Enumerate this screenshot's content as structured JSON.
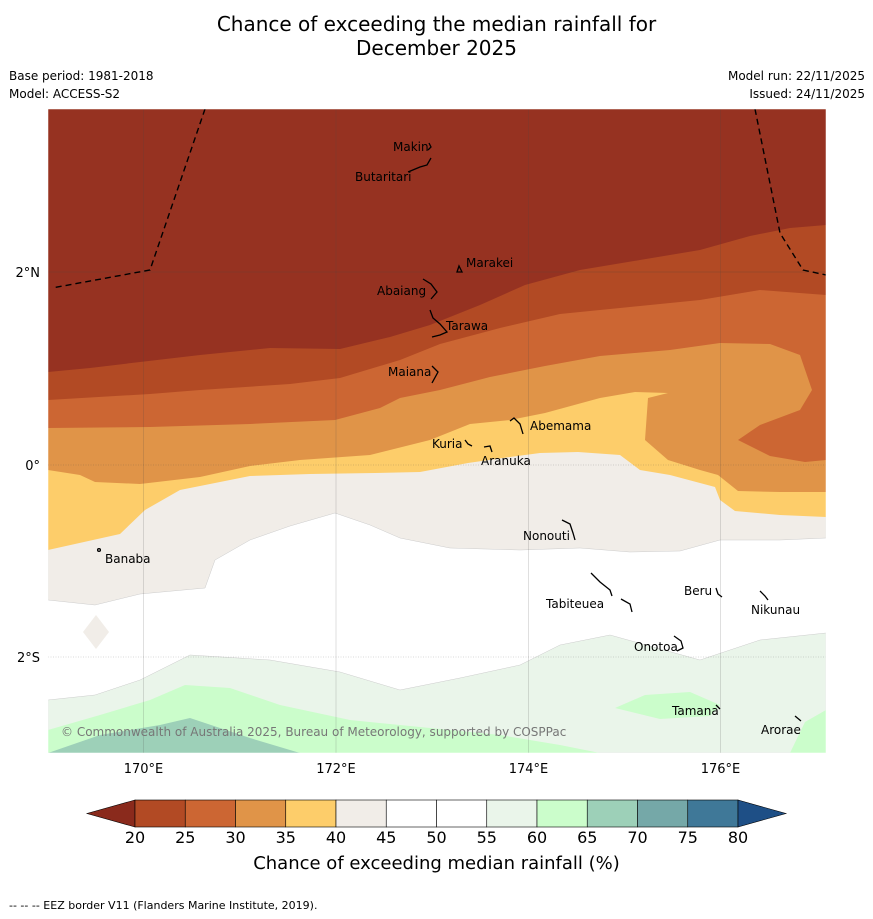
{
  "title_line1": "Chance of exceeding the median rainfall for",
  "title_line2": "December 2025",
  "base_period": "Base period: 1981-2018",
  "model": "Model: ACCESS-S2",
  "model_run": "Model run: 22/11/2025",
  "issued": "Issued: 24/11/2025",
  "lat_labels": [
    "2°N",
    "0°",
    "2°S"
  ],
  "lon_labels": [
    "170°E",
    "172°E",
    "174°E",
    "176°E"
  ],
  "islands": [
    "Makin",
    "Butaritari",
    "Marakei",
    "Abaiang",
    "Tarawa",
    "Maiana",
    "Abemama",
    "Kuria",
    "Aranuka",
    "Nonouti",
    "Banaba",
    "Tabiteuea",
    "Beru",
    "Nikunau",
    "Onotoa",
    "Tamana",
    "Arorae"
  ],
  "copyright": "© Commonwealth of Australia 2025, Bureau of Meteorology, supported by COSPPac",
  "colorbar": {
    "ticks": [
      "20",
      "25",
      "30",
      "35",
      "40",
      "45",
      "50",
      "55",
      "60",
      "65",
      "70",
      "75",
      "80"
    ],
    "colors": [
      "#8a2a1c",
      "#b24a24",
      "#cc6633",
      "#e09448",
      "#fdcd6a",
      "#f1ede8",
      "#ffffff",
      "#ffffff",
      "#eaf5ea",
      "#cbfdcb",
      "#9dd0b8",
      "#75a8a8",
      "#3f7898",
      "#1e4f86"
    ],
    "label": "Chance of exceeding median rainfall (%)"
  },
  "footer": "--  --  -- EEZ border V11 (Flanders Marine Institute, 2019)."
}
